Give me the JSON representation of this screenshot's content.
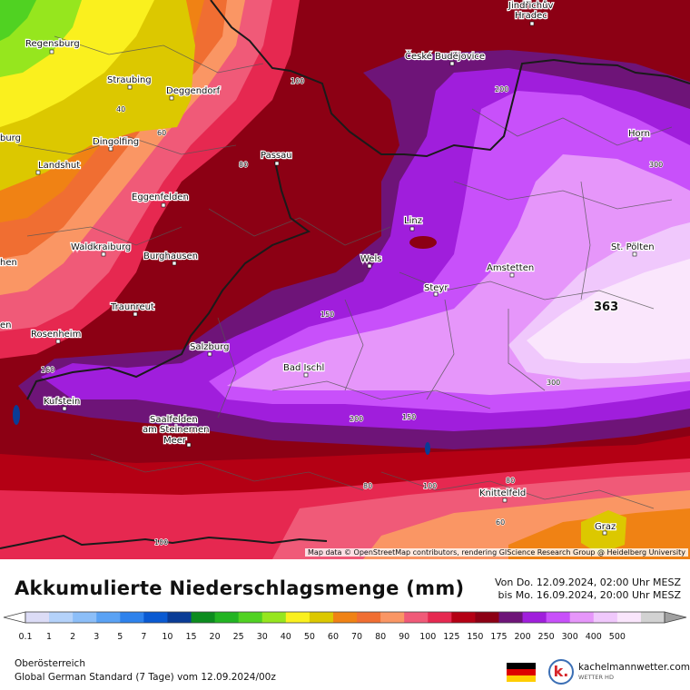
{
  "map": {
    "cities": [
      {
        "name": "Regensburg"
      },
      {
        "name": "Straubing"
      },
      {
        "name": "Deggendorf"
      },
      {
        "name": "Dingolfing"
      },
      {
        "name": "Landshut"
      },
      {
        "name": "Passau"
      },
      {
        "name": "Eggenfelden"
      },
      {
        "name": "Waldkraiburg"
      },
      {
        "name": "Burghausen"
      },
      {
        "name": "Traunreut"
      },
      {
        "name": "Rosenheim"
      },
      {
        "name": "Kufstein"
      },
      {
        "name": "Salzburg"
      },
      {
        "name": "Bad Ischl"
      },
      {
        "name": "Wels"
      },
      {
        "name": "Linz"
      },
      {
        "name": "Steyr"
      },
      {
        "name": "Amstetten"
      },
      {
        "name": "St. Pölten"
      },
      {
        "name": "České Budějovice"
      },
      {
        "name": "Horn"
      },
      {
        "name": "Knittelfeld"
      },
      {
        "name": "Graz"
      },
      {
        "name": "Jindřichův"
      },
      {
        "name": "Hradec"
      },
      {
        "name": "Saalfelden"
      },
      {
        "name": "am Steinernen"
      },
      {
        "name": "Meer"
      },
      {
        "name": "burg"
      },
      {
        "name": "hen"
      },
      {
        "name": "en"
      }
    ],
    "isoline_labels": [
      "40",
      "60",
      "80",
      "100",
      "150",
      "200",
      "300",
      "200",
      "150",
      "200",
      "200",
      "300",
      "160",
      "100",
      "80",
      "60",
      "80",
      "100",
      "100"
    ],
    "max_value": "363",
    "attribution": "Map data © OpenStreetMap contributors, rendering GIScience Research Group @ Heidelberg University"
  },
  "legend": {
    "title": "Akkumulierte Niederschlagsmenge (mm)",
    "period_line1": "Von Do. 12.09.2024, 02:00 Uhr MESZ",
    "period_line2": "bis Mo. 16.09.2024, 20:00 Uhr MESZ",
    "scale_values": [
      "0.1",
      "1",
      "2",
      "3",
      "5",
      "7",
      "10",
      "15",
      "20",
      "25",
      "30",
      "40",
      "50",
      "60",
      "70",
      "80",
      "90",
      "100",
      "125",
      "150",
      "175",
      "200",
      "250",
      "300",
      "400",
      "500"
    ],
    "scale_colors": [
      "#ffffff",
      "#dcdcf6",
      "#b4d2fa",
      "#8cbef8",
      "#5aa2f4",
      "#2e82ec",
      "#0a5ad2",
      "#0a3c96",
      "#0c8c1e",
      "#22b422",
      "#50d222",
      "#96e61e",
      "#faf01e",
      "#dcc800",
      "#f08214",
      "#f06e32",
      "#fa9664",
      "#f05a78",
      "#e62850",
      "#b40014",
      "#8c0014",
      "#6e1478",
      "#a01edc",
      "#c850fa",
      "#e696fa",
      "#f0c8fc",
      "#fae6fc",
      "#d2d2d2",
      "#a0a0a0"
    ],
    "region": "Oberösterreich",
    "model": "Global German Standard (7 Tage)",
    "run": "vom  12.09.2024/00z",
    "brand": "kachelmannwetter.com",
    "brand_sub": "WETTER HD",
    "brand_letter": "k."
  },
  "colors": {
    "flag_black": "#000000",
    "flag_red": "#dd0000",
    "flag_gold": "#ffce00",
    "border": "#1a1a1a",
    "admin_line": "#555555"
  }
}
